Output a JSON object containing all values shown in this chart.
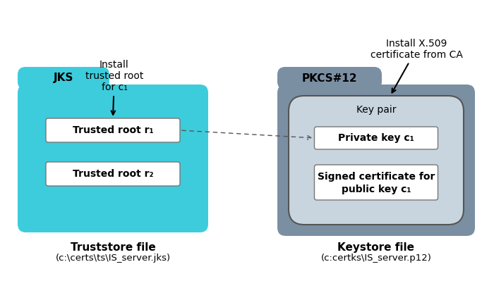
{
  "bg_color": "#ffffff",
  "cyan_color": "#3DCCDB",
  "gray_dark_color": "#7B8FA3",
  "gray_light_color": "#C8D4DE",
  "white_box_color": "#ffffff",
  "jks_label": "JKS",
  "pkcs_label": "PKCS#12",
  "trusted_root1": "Trusted root r₁",
  "trusted_root2": "Trusted root r₂",
  "private_key": "Private key c₁",
  "signed_cert_line1": "Signed certificate for",
  "signed_cert_line2": "public key c₁",
  "key_pair_label": "Key pair",
  "install_trusted": "Install\ntrusted root\nfor c₁",
  "install_x509": "Install X.509\ncertificate from CA",
  "truststore_label": "Truststore file",
  "truststore_path": "(c:\\certs\\ts\\IS_server.jks)",
  "keystore_label": "Keystore file",
  "keystore_path": "(c:certks\\IS_server.p12)",
  "figure_width": 7.0,
  "figure_height": 4.26,
  "dpi": 100
}
